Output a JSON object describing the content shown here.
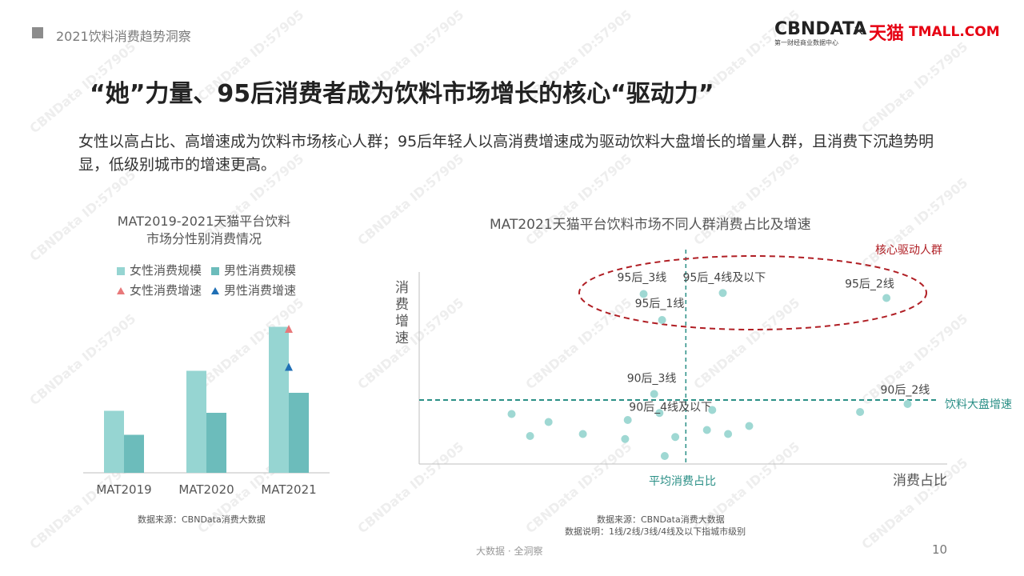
{
  "header": {
    "section_title": "2021饮料消费趋势洞察"
  },
  "logos": {
    "cbndata": "CBNDATA",
    "cbndata_sub": "第一财经商业数据中心",
    "times": "×",
    "tmall_cn": "天猫",
    "tmall_en": "TMALL.COM"
  },
  "title": "“她”力量、95后消费者成为饮料市场增长的核心“驱动力”",
  "subtitle": "女性以高占比、高增速成为饮料市场核心人群；95后年轻人以高消费增速成为驱动饮料大盘增长的增量人群，且消费下沉趋势明显，低级别城市的增速更高。",
  "watermark": "CBNData ID:57905",
  "colors": {
    "female_bar": "#96d5d2",
    "male_bar": "#6cbcbb",
    "female_growth": "#e8787a",
    "male_growth": "#1f6fb5",
    "dot": "#9fd8d3",
    "ref_line": "#2a8f86",
    "ellipse": "#b01e24"
  },
  "left_chart": {
    "title_line1": "MAT2019-2021天猫平台饮料",
    "title_line2": "市场分性别消费情况",
    "legend": {
      "female_size": "女性消费规模",
      "male_size": "男性消费规模",
      "female_growth": "女性消费增速",
      "male_growth": "男性消费增速"
    },
    "source": "数据来源：CBNData消费大数据"
  },
  "right_chart": {
    "title": "MAT2021天猫平台饮料市场不同人群消费占比及增速",
    "y_axis_label": "消费增速",
    "x_axis_label": "消费占比",
    "vline_label": "平均消费占比",
    "hline_label": "饮料大盘增速",
    "ellipse_label": "核心驱动人群",
    "source_line1": "数据来源：CBNData消费大数据",
    "source_line2": "数据说明：1线/2线/3线/4线及以下指城市级别"
  },
  "chart_data": [
    {
      "type": "bar",
      "categories": [
        "MAT2019",
        "MAT2020",
        "MAT2021"
      ],
      "series": [
        {
          "name": "女性消费规模",
          "values": [
            0.31,
            0.51,
            0.73
          ]
        },
        {
          "name": "男性消费规模",
          "values": [
            0.19,
            0.3,
            0.4
          ]
        }
      ],
      "markers": [
        {
          "name": "女性消费增速",
          "category": "MAT2021",
          "value": 0.72,
          "shape": "triangle"
        },
        {
          "name": "男性消费增速",
          "category": "MAT2021",
          "value": 0.53,
          "shape": "triangle"
        }
      ],
      "ylim": [
        0,
        1
      ],
      "legend": "top"
    },
    {
      "type": "scatter",
      "xlabel": "消费占比",
      "ylabel": "消费增速",
      "xlim": [
        0,
        100
      ],
      "ylim": [
        0,
        100
      ],
      "ref_x": 50.5,
      "ref_y": 32,
      "points": [
        {
          "label": "95后_3线",
          "x": 42.5,
          "y": 85
        },
        {
          "label": "95后_4线及以下",
          "x": 57.5,
          "y": 85.5
        },
        {
          "label": "95后_2线",
          "x": 88.5,
          "y": 83
        },
        {
          "label": "95后_1线",
          "x": 46,
          "y": 72
        },
        {
          "label": "90后_3线",
          "x": 44.5,
          "y": 35
        },
        {
          "label": "90后_4线及以下",
          "x": 45.5,
          "y": 25.5
        },
        {
          "label": "90后_2线",
          "x": 92.5,
          "y": 30
        },
        {
          "label": "",
          "x": 17.5,
          "y": 25
        },
        {
          "label": "",
          "x": 21,
          "y": 14
        },
        {
          "label": "",
          "x": 24.5,
          "y": 21
        },
        {
          "label": "",
          "x": 31,
          "y": 15
        },
        {
          "label": "",
          "x": 39.5,
          "y": 22
        },
        {
          "label": "",
          "x": 39,
          "y": 12.5
        },
        {
          "label": "",
          "x": 48.5,
          "y": 13.5
        },
        {
          "label": "",
          "x": 46.5,
          "y": 4
        },
        {
          "label": "",
          "x": 54.5,
          "y": 17
        },
        {
          "label": "",
          "x": 55.5,
          "y": 27
        },
        {
          "label": "",
          "x": 58.5,
          "y": 15
        },
        {
          "label": "",
          "x": 62.5,
          "y": 19
        },
        {
          "label": "",
          "x": 83.5,
          "y": 26
        }
      ],
      "grid": false
    }
  ],
  "footer": {
    "text": "大数据 · 全洞察",
    "page": "10"
  }
}
